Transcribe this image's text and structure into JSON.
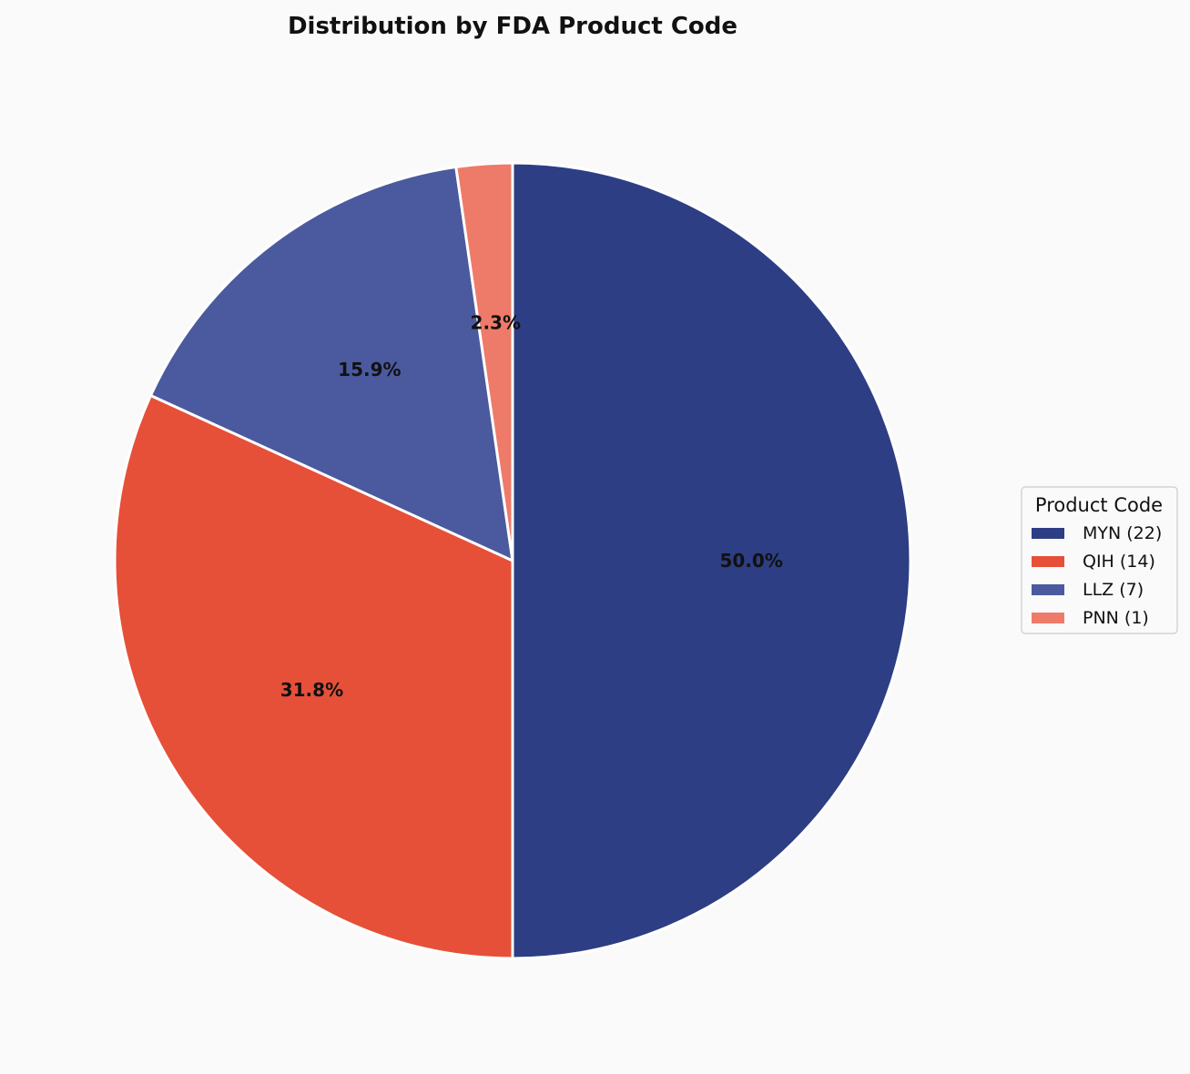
{
  "chart_data": {
    "type": "pie",
    "title": "Distribution by FDA Product Code",
    "categories": [
      "MYN",
      "QIH",
      "LLZ",
      "PNN"
    ],
    "values": [
      22,
      14,
      7,
      1
    ],
    "percent_labels": [
      "50.0%",
      "31.8%",
      "15.9%",
      "2.3%"
    ],
    "colors": [
      "#2d3e84",
      "#e65038",
      "#4b5a9e",
      "#ee7b69"
    ],
    "start_angle_deg": 90,
    "direction": "clockwise",
    "legend": {
      "title": "Product Code",
      "placement": "right",
      "entries": [
        "MYN (22)",
        "QIH (14)",
        "LLZ (7)",
        "PNN (1)"
      ]
    }
  }
}
